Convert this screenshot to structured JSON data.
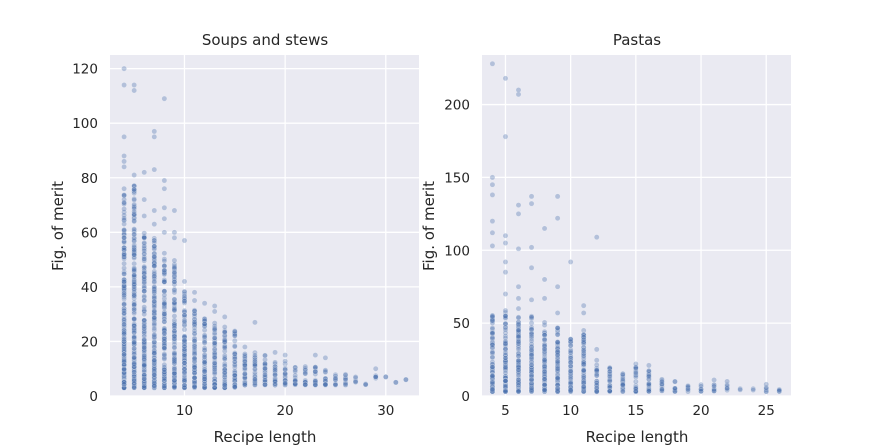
{
  "chart_data": [
    {
      "type": "scatter",
      "title": "Soups and stews",
      "xlabel": "Recipe length",
      "ylabel": "Fig. of merit",
      "xlim": [
        2.6,
        33.3
      ],
      "ylim": [
        0,
        125
      ],
      "xticks": [
        10,
        20,
        30
      ],
      "yticks": [
        0,
        20,
        40,
        60,
        80,
        100,
        120
      ],
      "grid": true,
      "color": "#4c72b0",
      "series": [
        {
          "columns": [
            {
              "x": 4,
              "ymin": 3,
              "ymax": 74,
              "outliers": [
                76,
                84,
                86,
                88,
                95,
                114,
                120
              ]
            },
            {
              "x": 5,
              "ymin": 3,
              "ymax": 78,
              "outliers": [
                81,
                112,
                114
              ]
            },
            {
              "x": 6,
              "ymin": 3,
              "ymax": 62,
              "outliers": [
                66,
                72,
                82
              ]
            },
            {
              "x": 7,
              "ymin": 3,
              "ymax": 58,
              "outliers": [
                63,
                68,
                83,
                95,
                97
              ]
            },
            {
              "x": 8,
              "ymin": 3,
              "ymax": 55,
              "outliers": [
                60,
                65,
                69,
                76,
                79,
                109
              ]
            },
            {
              "x": 9,
              "ymin": 3,
              "ymax": 50,
              "outliers": [
                58,
                60,
                68
              ]
            },
            {
              "x": 10,
              "ymin": 3,
              "ymax": 40,
              "outliers": [
                42,
                57
              ]
            },
            {
              "x": 11,
              "ymin": 3,
              "ymax": 33,
              "outliers": [
                35,
                38
              ]
            },
            {
              "x": 12,
              "ymin": 3,
              "ymax": 30,
              "outliers": [
                34
              ]
            },
            {
              "x": 13,
              "ymin": 3,
              "ymax": 28,
              "outliers": [
                31,
                33
              ]
            },
            {
              "x": 14,
              "ymin": 3,
              "ymax": 26,
              "outliers": [
                29
              ]
            },
            {
              "x": 15,
              "ymin": 3,
              "ymax": 24,
              "outliers": []
            },
            {
              "x": 16,
              "ymin": 4,
              "ymax": 18,
              "outliers": []
            },
            {
              "x": 17,
              "ymin": 4,
              "ymax": 16,
              "outliers": [
                27
              ]
            },
            {
              "x": 18,
              "ymin": 4,
              "ymax": 15,
              "outliers": []
            },
            {
              "x": 19,
              "ymin": 4,
              "ymax": 14,
              "outliers": [
                16
              ]
            },
            {
              "x": 20,
              "ymin": 4,
              "ymax": 13,
              "outliers": [
                15
              ]
            },
            {
              "x": 21,
              "ymin": 4,
              "ymax": 11,
              "outliers": []
            },
            {
              "x": 22,
              "ymin": 4,
              "ymax": 11,
              "outliers": []
            },
            {
              "x": 23,
              "ymin": 4,
              "ymax": 12,
              "outliers": [
                15
              ]
            },
            {
              "x": 24,
              "ymin": 4,
              "ymax": 10,
              "outliers": [
                14
              ]
            },
            {
              "x": 25,
              "ymin": 4,
              "ymax": 8,
              "outliers": []
            },
            {
              "x": 26,
              "ymin": 4,
              "ymax": 8,
              "outliers": []
            },
            {
              "x": 27,
              "ymin": 5,
              "ymax": 7,
              "outliers": []
            },
            {
              "x": 28,
              "ymin": 4,
              "ymax": 5,
              "outliers": []
            },
            {
              "x": 29,
              "ymin": 6,
              "ymax": 8,
              "outliers": [
                10
              ]
            },
            {
              "x": 30,
              "ymin": 7,
              "ymax": 7,
              "outliers": []
            },
            {
              "x": 31,
              "ymin": 5,
              "ymax": 5,
              "outliers": []
            },
            {
              "x": 32,
              "ymin": 6,
              "ymax": 6,
              "outliers": []
            }
          ]
        }
      ]
    },
    {
      "type": "scatter",
      "title": "Pastas",
      "xlabel": "Recipe length",
      "ylabel": "Fig. of merit",
      "xlim": [
        3.2,
        26.9
      ],
      "ylim": [
        0,
        234
      ],
      "xticks": [
        5,
        10,
        15,
        20,
        25
      ],
      "yticks": [
        0,
        50,
        100,
        150,
        200
      ],
      "grid": true,
      "color": "#4c72b0",
      "series": [
        {
          "columns": [
            {
              "x": 4,
              "ymin": 3,
              "ymax": 58,
              "outliers": [
                103,
                112,
                120,
                138,
                145,
                150,
                228
              ]
            },
            {
              "x": 5,
              "ymin": 3,
              "ymax": 60,
              "outliers": [
                70,
                85,
                92,
                105,
                110,
                178,
                218
              ]
            },
            {
              "x": 6,
              "ymin": 3,
              "ymax": 56,
              "outliers": [
                60,
                67,
                75,
                101,
                125,
                131,
                207,
                210
              ]
            },
            {
              "x": 7,
              "ymin": 3,
              "ymax": 55,
              "outliers": [
                66,
                88,
                102,
                132,
                137
              ]
            },
            {
              "x": 8,
              "ymin": 3,
              "ymax": 52,
              "outliers": [
                67,
                80,
                115
              ]
            },
            {
              "x": 9,
              "ymin": 3,
              "ymax": 47,
              "outliers": [
                57,
                75,
                122,
                137
              ]
            },
            {
              "x": 10,
              "ymin": 3,
              "ymax": 40,
              "outliers": [
                92
              ]
            },
            {
              "x": 11,
              "ymin": 3,
              "ymax": 45,
              "outliers": [
                57,
                62
              ]
            },
            {
              "x": 12,
              "ymin": 3,
              "ymax": 25,
              "outliers": [
                32,
                109
              ]
            },
            {
              "x": 13,
              "ymin": 3,
              "ymax": 20,
              "outliers": []
            },
            {
              "x": 14,
              "ymin": 3,
              "ymax": 16,
              "outliers": []
            },
            {
              "x": 15,
              "ymin": 3,
              "ymax": 20,
              "outliers": [
                22
              ]
            },
            {
              "x": 16,
              "ymin": 3,
              "ymax": 18,
              "outliers": [
                21
              ]
            },
            {
              "x": 17,
              "ymin": 3,
              "ymax": 12,
              "outliers": []
            },
            {
              "x": 18,
              "ymin": 3,
              "ymax": 10,
              "outliers": []
            },
            {
              "x": 19,
              "ymin": 3,
              "ymax": 8,
              "outliers": []
            },
            {
              "x": 20,
              "ymin": 3,
              "ymax": 8,
              "outliers": []
            },
            {
              "x": 21,
              "ymin": 3,
              "ymax": 8,
              "outliers": [
                11
              ]
            },
            {
              "x": 22,
              "ymin": 4,
              "ymax": 8,
              "outliers": [
                10
              ]
            },
            {
              "x": 23,
              "ymin": 4,
              "ymax": 5,
              "outliers": []
            },
            {
              "x": 24,
              "ymin": 4,
              "ymax": 5,
              "outliers": []
            },
            {
              "x": 25,
              "ymin": 3,
              "ymax": 6,
              "outliers": [
                8
              ]
            },
            {
              "x": 26,
              "ymin": 3,
              "ymax": 6,
              "outliers": []
            }
          ]
        }
      ]
    }
  ]
}
